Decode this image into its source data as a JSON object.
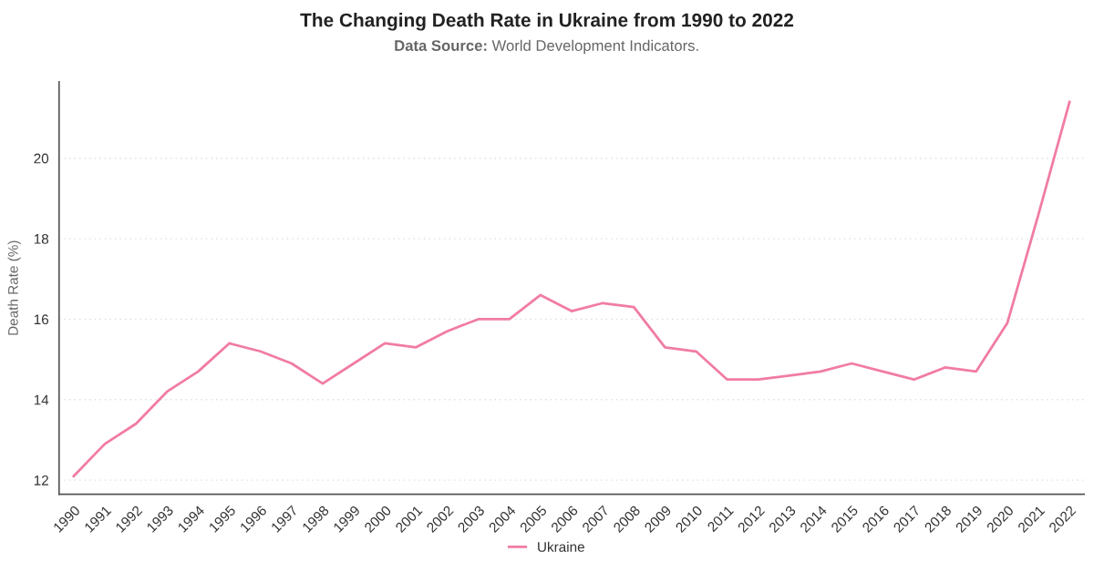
{
  "chart_data": {
    "type": "line",
    "title": "The Changing Death Rate in Ukraine from 1990 to 2022",
    "subtitle": "Data Source: World Development Indicators.",
    "ylabel": "Death Rate (%)",
    "categories": [
      "1990",
      "1991",
      "1992",
      "1993",
      "1994",
      "1995",
      "1996",
      "1997",
      "1998",
      "1999",
      "2000",
      "2001",
      "2002",
      "2003",
      "2004",
      "2005",
      "2006",
      "2007",
      "2008",
      "2009",
      "2010",
      "2011",
      "2012",
      "2013",
      "2014",
      "2015",
      "2016",
      "2017",
      "2018",
      "2019",
      "2020",
      "2021",
      "2022"
    ],
    "series": [
      {
        "name": "Ukraine",
        "color": "#f17ca3",
        "values": [
          12.1,
          12.9,
          13.4,
          14.2,
          14.7,
          15.4,
          15.2,
          14.9,
          14.4,
          14.9,
          15.4,
          15.3,
          15.7,
          16.0,
          16.0,
          16.6,
          16.2,
          16.4,
          16.3,
          15.3,
          15.2,
          14.5,
          14.5,
          14.6,
          14.7,
          14.9,
          14.7,
          14.5,
          14.8,
          14.7,
          15.9,
          18.6,
          21.4
        ]
      }
    ],
    "ylim": [
      11.65,
      21.9
    ],
    "yticks": [
      12,
      14,
      16,
      18,
      20
    ],
    "grid": "y",
    "legend": "bottom",
    "marker": "none",
    "line_style": "solid"
  }
}
